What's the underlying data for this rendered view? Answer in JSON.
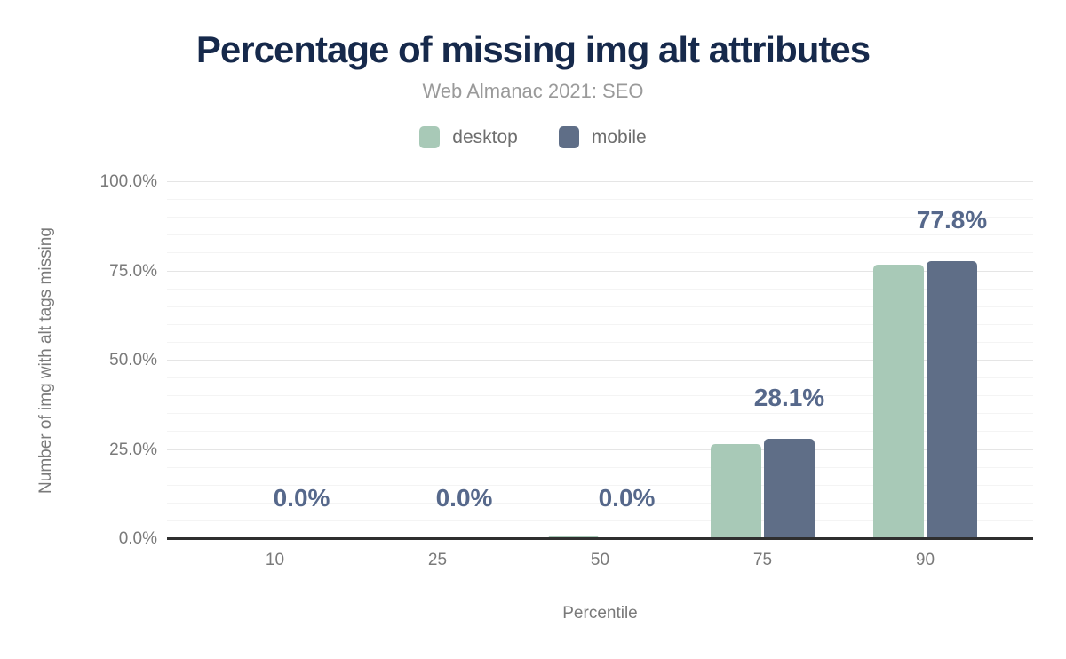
{
  "chart_data": {
    "type": "bar",
    "title": "Percentage of missing img alt attributes",
    "subtitle": "Web Almanac 2021: SEO",
    "xlabel": "Percentile",
    "ylabel": "Number of img with alt tags missing",
    "categories": [
      "10",
      "25",
      "50",
      "75",
      "90"
    ],
    "series": [
      {
        "name": "desktop",
        "color": "#a8c9b7",
        "values": [
          0,
          0,
          1.1,
          26.7,
          76.8
        ]
      },
      {
        "name": "mobile",
        "color": "#5f6e87",
        "values": [
          0,
          0,
          0,
          28.1,
          77.8
        ]
      }
    ],
    "value_labels": [
      "0.0%",
      "0.0%",
      "0.0%",
      "28.1%",
      "77.8%"
    ],
    "value_label_series": "mobile",
    "ylim": [
      0,
      100
    ],
    "y_ticks": [
      {
        "value": 0,
        "label": "0.0%"
      },
      {
        "value": 25,
        "label": "25.0%"
      },
      {
        "value": 50,
        "label": "50.0%"
      },
      {
        "value": 75,
        "label": "75.0%"
      },
      {
        "value": 100,
        "label": "100.0%"
      }
    ],
    "grid": {
      "minor_step": 5,
      "major_step": 25,
      "vertical": false
    },
    "legend_position": "top",
    "colors": {
      "title": "#16294b",
      "subtitle": "#9a9a9a",
      "axis_text": "#7a7a7a",
      "axis_line": "#2f2f2f",
      "value_label": "#56688b",
      "gridline_major": "#e5e5e5",
      "gridline_minor": "#f4f4f4",
      "background": "#ffffff"
    }
  }
}
